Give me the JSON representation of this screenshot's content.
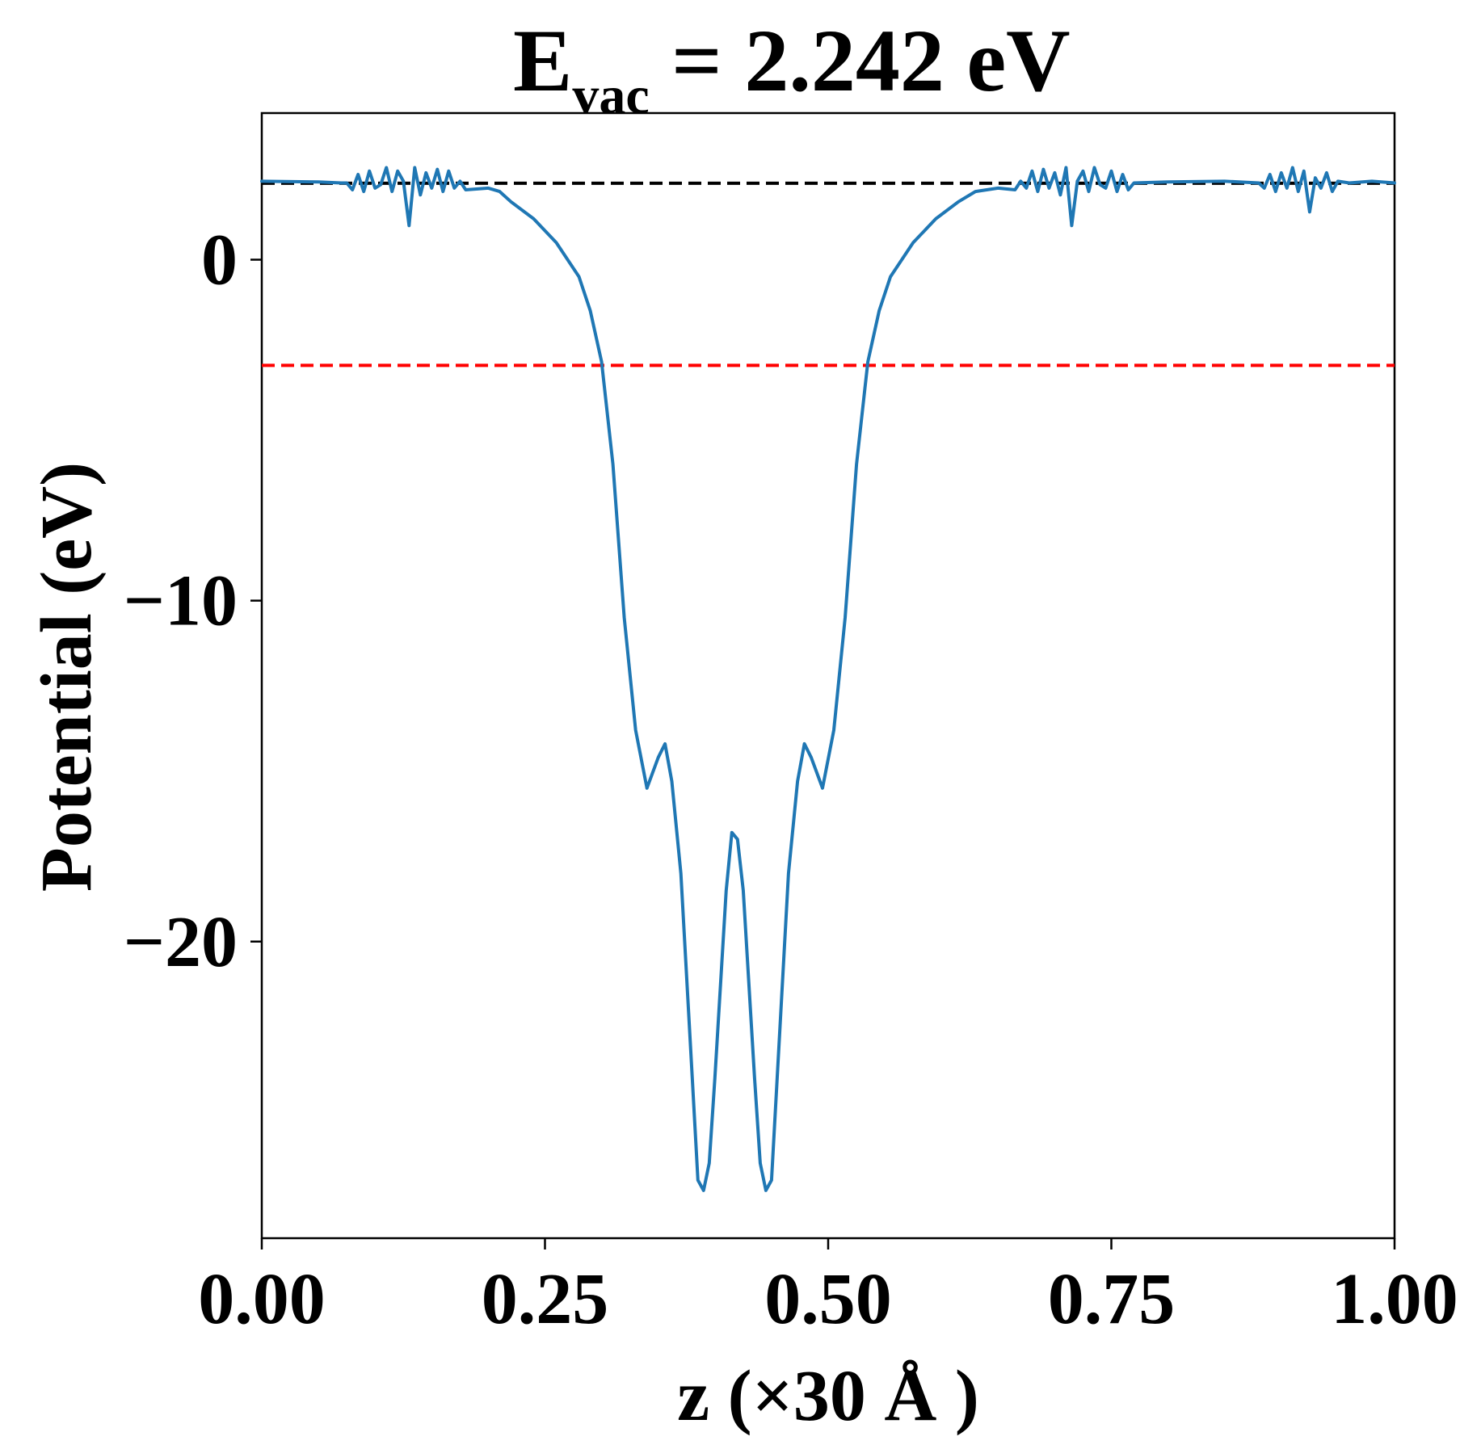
{
  "chart_data": {
    "type": "line",
    "title": {
      "main": "E",
      "subscript": "vac",
      "suffix": " = 2.242 eV"
    },
    "xlabel": "z (×30 Å )",
    "ylabel": "Potential (eV)",
    "xlim": [
      0,
      1
    ],
    "ylim": [
      -28.7,
      4.3
    ],
    "grid": false,
    "x_ticks": [
      0,
      0.25,
      0.5,
      0.75,
      1.0
    ],
    "x_tick_labels": [
      "0.00",
      "0.25",
      "0.50",
      "0.75",
      "1.00"
    ],
    "y_ticks": [
      0,
      -10,
      -20
    ],
    "y_tick_labels": [
      "0",
      "−10",
      "−20"
    ],
    "reference_lines": [
      {
        "name": "vacuum-level",
        "y": 2.242,
        "color": "#000000",
        "style": "dashed"
      },
      {
        "name": "fermi-level",
        "y": -3.1,
        "color": "#ff0000",
        "style": "dashed"
      }
    ],
    "series": [
      {
        "name": "potential",
        "color": "#1f77b4",
        "points": [
          [
            0.0,
            2.3
          ],
          [
            0.05,
            2.28
          ],
          [
            0.07,
            2.25
          ],
          [
            0.075,
            2.25
          ],
          [
            0.08,
            2.05
          ],
          [
            0.085,
            2.5
          ],
          [
            0.09,
            2.0
          ],
          [
            0.095,
            2.6
          ],
          [
            0.1,
            2.1
          ],
          [
            0.105,
            2.2
          ],
          [
            0.11,
            2.7
          ],
          [
            0.115,
            2.0
          ],
          [
            0.12,
            2.6
          ],
          [
            0.125,
            2.3
          ],
          [
            0.13,
            1.0
          ],
          [
            0.135,
            2.7
          ],
          [
            0.14,
            1.9
          ],
          [
            0.145,
            2.55
          ],
          [
            0.15,
            2.1
          ],
          [
            0.155,
            2.65
          ],
          [
            0.16,
            2.0
          ],
          [
            0.165,
            2.6
          ],
          [
            0.17,
            2.1
          ],
          [
            0.175,
            2.3
          ],
          [
            0.18,
            2.05
          ],
          [
            0.2,
            2.1
          ],
          [
            0.21,
            2.0
          ],
          [
            0.22,
            1.7
          ],
          [
            0.24,
            1.2
          ],
          [
            0.26,
            0.5
          ],
          [
            0.28,
            -0.5
          ],
          [
            0.29,
            -1.5
          ],
          [
            0.3,
            -3.0
          ],
          [
            0.31,
            -6.0
          ],
          [
            0.32,
            -10.5
          ],
          [
            0.33,
            -13.8
          ],
          [
            0.34,
            -15.5
          ],
          [
            0.35,
            -14.6
          ],
          [
            0.356,
            -14.2
          ],
          [
            0.362,
            -15.3
          ],
          [
            0.37,
            -18.0
          ],
          [
            0.38,
            -24.0
          ],
          [
            0.385,
            -27.0
          ],
          [
            0.39,
            -27.3
          ],
          [
            0.395,
            -26.5
          ],
          [
            0.4,
            -24.0
          ],
          [
            0.41,
            -18.5
          ],
          [
            0.415,
            -16.8
          ],
          [
            0.42,
            -17.0
          ],
          [
            0.425,
            -18.5
          ],
          [
            0.435,
            -24.0
          ],
          [
            0.44,
            -26.5
          ],
          [
            0.445,
            -27.3
          ],
          [
            0.45,
            -27.0
          ],
          [
            0.455,
            -24.0
          ],
          [
            0.465,
            -18.0
          ],
          [
            0.473,
            -15.3
          ],
          [
            0.479,
            -14.2
          ],
          [
            0.485,
            -14.6
          ],
          [
            0.495,
            -15.5
          ],
          [
            0.505,
            -13.8
          ],
          [
            0.515,
            -10.5
          ],
          [
            0.525,
            -6.0
          ],
          [
            0.535,
            -3.0
          ],
          [
            0.545,
            -1.5
          ],
          [
            0.555,
            -0.5
          ],
          [
            0.575,
            0.5
          ],
          [
            0.595,
            1.2
          ],
          [
            0.615,
            1.7
          ],
          [
            0.63,
            2.0
          ],
          [
            0.65,
            2.1
          ],
          [
            0.665,
            2.05
          ],
          [
            0.67,
            2.3
          ],
          [
            0.675,
            2.1
          ],
          [
            0.68,
            2.6
          ],
          [
            0.685,
            2.0
          ],
          [
            0.69,
            2.65
          ],
          [
            0.695,
            2.1
          ],
          [
            0.7,
            2.55
          ],
          [
            0.705,
            1.9
          ],
          [
            0.71,
            2.7
          ],
          [
            0.715,
            1.0
          ],
          [
            0.72,
            2.3
          ],
          [
            0.725,
            2.6
          ],
          [
            0.73,
            2.0
          ],
          [
            0.735,
            2.7
          ],
          [
            0.74,
            2.2
          ],
          [
            0.745,
            2.1
          ],
          [
            0.75,
            2.6
          ],
          [
            0.755,
            2.0
          ],
          [
            0.76,
            2.5
          ],
          [
            0.765,
            2.05
          ],
          [
            0.77,
            2.25
          ],
          [
            0.8,
            2.28
          ],
          [
            0.85,
            2.3
          ],
          [
            0.88,
            2.25
          ],
          [
            0.885,
            2.1
          ],
          [
            0.89,
            2.5
          ],
          [
            0.895,
            2.0
          ],
          [
            0.9,
            2.55
          ],
          [
            0.905,
            2.1
          ],
          [
            0.91,
            2.7
          ],
          [
            0.915,
            2.0
          ],
          [
            0.92,
            2.6
          ],
          [
            0.925,
            1.4
          ],
          [
            0.93,
            2.4
          ],
          [
            0.935,
            2.1
          ],
          [
            0.94,
            2.55
          ],
          [
            0.945,
            2.0
          ],
          [
            0.95,
            2.3
          ],
          [
            0.96,
            2.25
          ],
          [
            0.98,
            2.3
          ],
          [
            1.0,
            2.25
          ]
        ]
      }
    ]
  }
}
